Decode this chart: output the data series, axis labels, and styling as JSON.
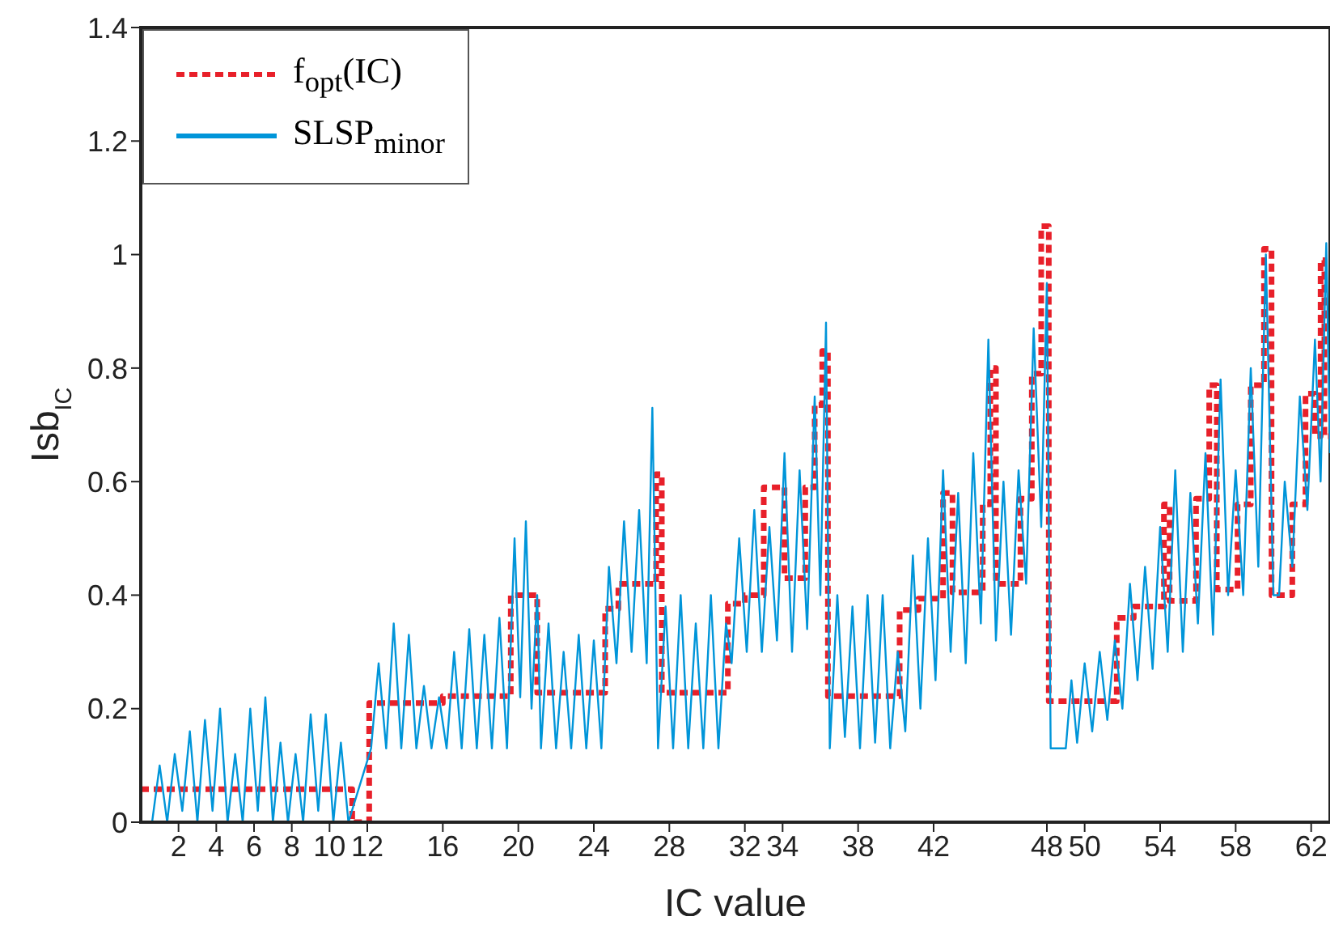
{
  "chart_data": {
    "type": "line",
    "xlabel": "IC value",
    "ylabel": "Isb$_{IC}$",
    "xlim": [
      0,
      63
    ],
    "ylim": [
      0,
      1.4
    ],
    "xticks": [
      2,
      4,
      6,
      8,
      10,
      12,
      16,
      20,
      24,
      28,
      32,
      34,
      38,
      42,
      48,
      50,
      54,
      58,
      62
    ],
    "yticks": [
      0,
      0.2,
      0.4,
      0.6,
      0.8,
      1,
      1.2,
      1.4
    ],
    "grid": false,
    "legend": "top left",
    "marker": "none",
    "series": [
      {
        "name": "f$_{opt}$(IC)",
        "color": "#e8202a",
        "line_style": "dashed",
        "x": [
          0,
          11.2,
          11.2,
          12.1,
          12.1,
          16.0,
          16.0,
          19.6,
          19.6,
          21.0,
          21.0,
          24.6,
          24.6,
          25.3,
          25.3,
          27.3,
          27.3,
          27.6,
          27.6,
          31.1,
          31.1,
          32.0,
          32.0,
          33.0,
          33.0,
          34.1,
          34.1,
          35.2,
          35.2,
          35.7,
          35.7,
          36.1,
          36.1,
          36.4,
          36.4,
          40.2,
          40.2,
          41.2,
          41.2,
          42.5,
          42.5,
          43.0,
          43.0,
          44.6,
          44.6,
          45.0,
          45.0,
          45.3,
          45.3,
          46.6,
          46.6,
          47.2,
          47.2,
          47.7,
          47.7,
          48.1,
          48.1,
          51.7,
          51.7,
          52.6,
          52.6,
          54.2,
          54.2,
          54.5,
          54.5,
          55.9,
          55.9,
          56.6,
          56.6,
          57.0,
          57.0,
          58.1,
          58.1,
          58.8,
          58.8,
          59.5,
          59.5,
          59.9,
          59.9,
          61.0,
          61.0,
          61.7,
          61.7,
          62.2,
          62.2,
          62.5,
          62.5,
          62.7,
          62.7,
          63
        ],
        "values": [
          0.058,
          0.058,
          0,
          0,
          0.21,
          0.21,
          0.222,
          0.222,
          0.4,
          0.4,
          0.228,
          0.228,
          0.376,
          0.376,
          0.42,
          0.42,
          0.613,
          0.613,
          0.228,
          0.228,
          0.385,
          0.385,
          0.4,
          0.4,
          0.59,
          0.59,
          0.43,
          0.43,
          0.59,
          0.59,
          0.735,
          0.735,
          0.83,
          0.83,
          0.222,
          0.222,
          0.374,
          0.374,
          0.394,
          0.394,
          0.58,
          0.58,
          0.405,
          0.405,
          0.56,
          0.56,
          0.8,
          0.8,
          0.42,
          0.42,
          0.57,
          0.57,
          0.79,
          0.79,
          1.05,
          1.05,
          0.213,
          0.213,
          0.36,
          0.36,
          0.38,
          0.38,
          0.56,
          0.56,
          0.39,
          0.39,
          0.57,
          0.57,
          0.77,
          0.77,
          0.41,
          0.41,
          0.56,
          0.56,
          0.77,
          0.77,
          1.01,
          1.01,
          0.4,
          0.4,
          0.56,
          0.56,
          0.755,
          0.755,
          0.68,
          0.68,
          0.99,
          0.99,
          0.68,
          0.68
        ]
      },
      {
        "name": "SLSP$_{minor}$",
        "color": "#0095d9",
        "line_style": "solid",
        "x": [
          0.6,
          1.0,
          1.4,
          1.8,
          2.2,
          2.6,
          3.0,
          3.4,
          3.8,
          4.2,
          4.6,
          5.0,
          5.4,
          5.8,
          6.2,
          6.6,
          7.0,
          7.4,
          7.8,
          8.2,
          8.6,
          9.0,
          9.4,
          9.8,
          10.2,
          10.6,
          11.0,
          12.2,
          12.6,
          13.0,
          13.4,
          13.8,
          14.2,
          14.6,
          15.0,
          15.4,
          15.8,
          16.2,
          16.6,
          17.0,
          17.4,
          17.8,
          18.2,
          18.6,
          19.0,
          19.4,
          19.8,
          20.1,
          20.4,
          20.7,
          21.0,
          21.2,
          21.6,
          22.0,
          22.4,
          22.8,
          23.2,
          23.6,
          24.0,
          24.4,
          24.8,
          25.2,
          25.6,
          26.0,
          26.4,
          26.8,
          27.1,
          27.4,
          27.8,
          28.2,
          28.6,
          29.0,
          29.4,
          29.8,
          30.2,
          30.6,
          31.0,
          31.3,
          31.7,
          32.1,
          32.5,
          32.9,
          33.3,
          33.7,
          34.1,
          34.5,
          34.9,
          35.3,
          35.7,
          36.0,
          36.3,
          36.5,
          36.9,
          37.3,
          37.7,
          38.1,
          38.5,
          38.9,
          39.3,
          39.7,
          40.1,
          40.5,
          40.9,
          41.3,
          41.7,
          42.1,
          42.5,
          42.9,
          43.3,
          43.7,
          44.1,
          44.5,
          44.9,
          45.3,
          45.7,
          46.1,
          46.5,
          46.9,
          47.3,
          47.7,
          48.0,
          48.2,
          49.0,
          49.3,
          49.6,
          50.0,
          50.4,
          50.8,
          51.2,
          51.6,
          52.0,
          52.4,
          52.8,
          53.2,
          53.6,
          54.0,
          54.4,
          54.8,
          55.2,
          55.6,
          56.0,
          56.4,
          56.8,
          57.2,
          57.6,
          58.0,
          58.4,
          58.8,
          59.2,
          59.6,
          60.0,
          60.3,
          60.6,
          61.0,
          61.4,
          61.8,
          62.2,
          62.5,
          62.8,
          63
        ],
        "values": [
          0,
          0.1,
          0,
          0.12,
          0.02,
          0.16,
          0,
          0.18,
          0.02,
          0.2,
          0,
          0.12,
          0,
          0.2,
          0.02,
          0.22,
          0,
          0.14,
          0,
          0.12,
          0,
          0.19,
          0.02,
          0.19,
          0,
          0.14,
          0,
          0.13,
          0.28,
          0.13,
          0.35,
          0.13,
          0.33,
          0.13,
          0.24,
          0.13,
          0.22,
          0.13,
          0.3,
          0.13,
          0.34,
          0.13,
          0.33,
          0.13,
          0.36,
          0.13,
          0.5,
          0.22,
          0.53,
          0.2,
          0.4,
          0.13,
          0.35,
          0.13,
          0.3,
          0.13,
          0.33,
          0.13,
          0.32,
          0.13,
          0.45,
          0.28,
          0.53,
          0.3,
          0.55,
          0.28,
          0.73,
          0.13,
          0.38,
          0.13,
          0.4,
          0.13,
          0.35,
          0.13,
          0.4,
          0.13,
          0.35,
          0.28,
          0.5,
          0.3,
          0.55,
          0.3,
          0.52,
          0.32,
          0.65,
          0.3,
          0.62,
          0.34,
          0.75,
          0.4,
          0.88,
          0.13,
          0.4,
          0.15,
          0.38,
          0.13,
          0.4,
          0.14,
          0.4,
          0.13,
          0.3,
          0.16,
          0.47,
          0.2,
          0.5,
          0.25,
          0.62,
          0.3,
          0.58,
          0.28,
          0.65,
          0.35,
          0.85,
          0.32,
          0.6,
          0.33,
          0.62,
          0.42,
          0.87,
          0.52,
          0.95,
          0.13,
          0.13,
          0.25,
          0.14,
          0.28,
          0.16,
          0.3,
          0.18,
          0.32,
          0.2,
          0.42,
          0.25,
          0.45,
          0.27,
          0.52,
          0.3,
          0.62,
          0.3,
          0.58,
          0.35,
          0.65,
          0.33,
          0.78,
          0.4,
          0.62,
          0.4,
          0.8,
          0.45,
          1.0,
          0.4,
          0.4,
          0.6,
          0.45,
          0.75,
          0.55,
          0.85,
          0.6,
          1.02,
          0.65
        ]
      }
    ]
  }
}
